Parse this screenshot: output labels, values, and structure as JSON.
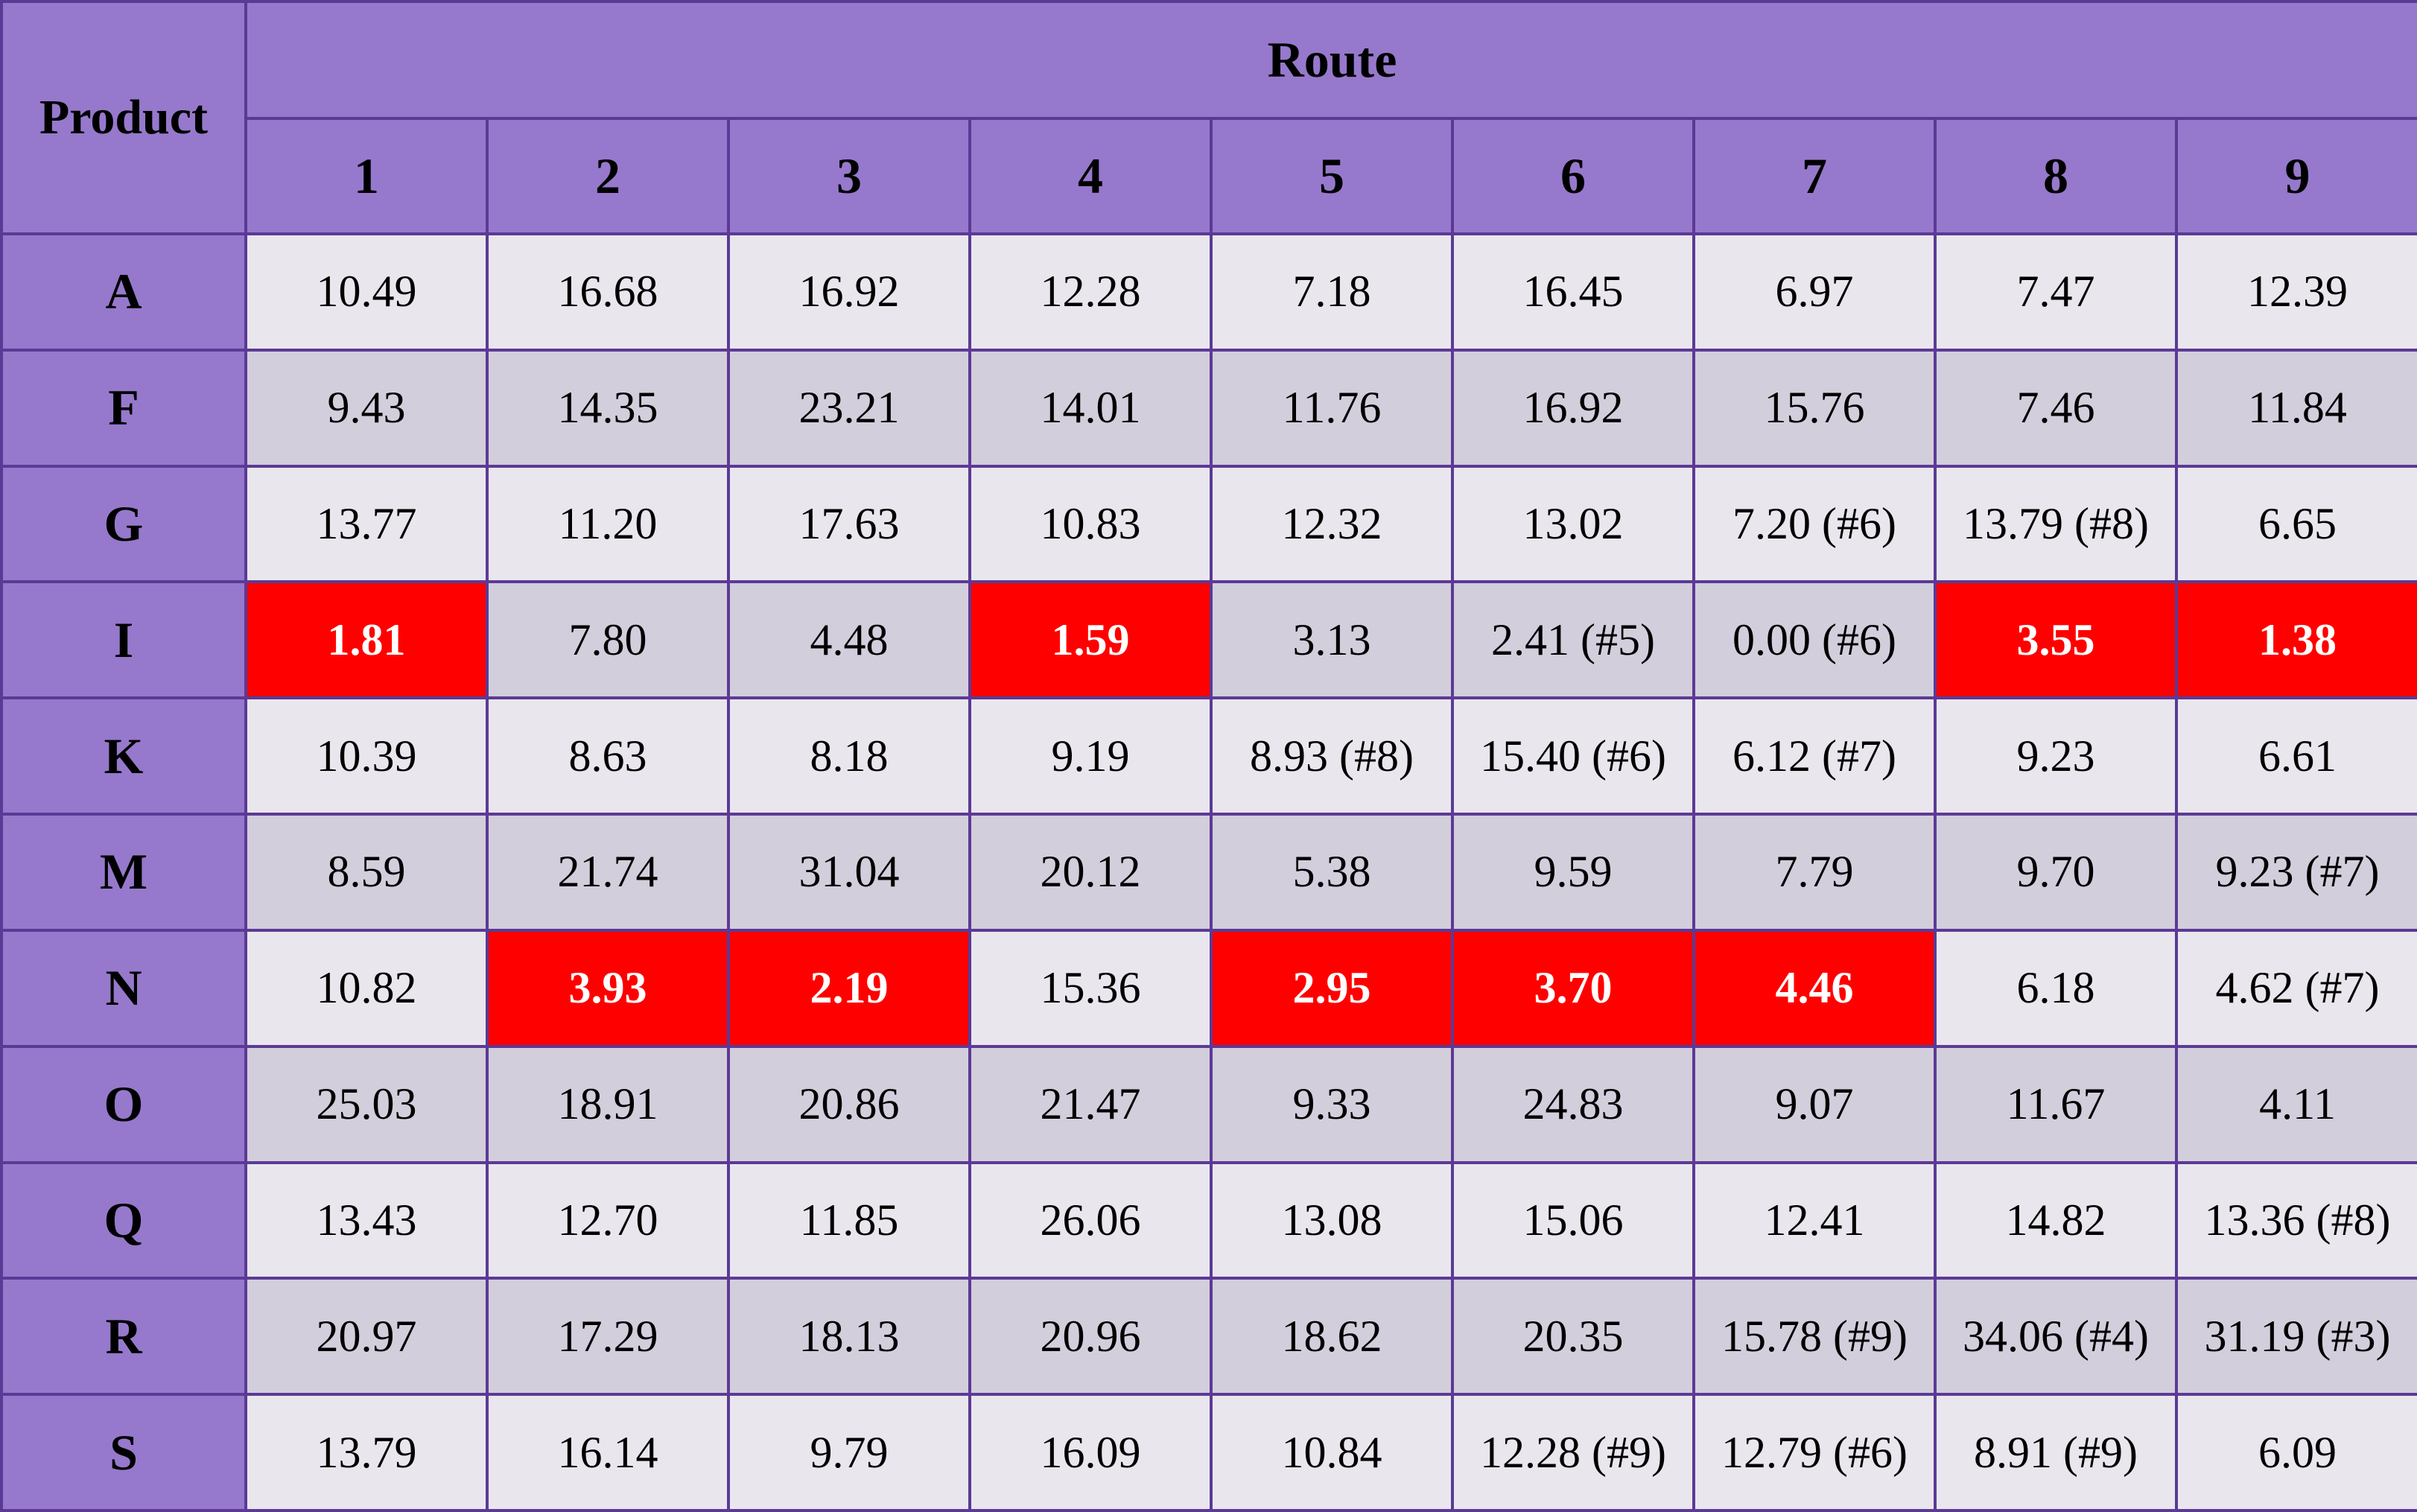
{
  "table": {
    "product_header": "Product",
    "route_header": "Route",
    "route_numbers": [
      "1",
      "2",
      "3",
      "4",
      "5",
      "6",
      "7",
      "8",
      "9"
    ],
    "highlight_color": "#ff0000",
    "header_color": "#9679cc",
    "rows": [
      {
        "label": "A",
        "cells": [
          {
            "value": "10.49"
          },
          {
            "value": "16.68"
          },
          {
            "value": "16.92"
          },
          {
            "value": "12.28"
          },
          {
            "value": "7.18"
          },
          {
            "value": "16.45"
          },
          {
            "value": "6.97"
          },
          {
            "value": "7.47"
          },
          {
            "value": "12.39"
          }
        ]
      },
      {
        "label": "F",
        "cells": [
          {
            "value": "9.43"
          },
          {
            "value": "14.35"
          },
          {
            "value": "23.21"
          },
          {
            "value": "14.01"
          },
          {
            "value": "11.76"
          },
          {
            "value": "16.92"
          },
          {
            "value": "15.76"
          },
          {
            "value": "7.46"
          },
          {
            "value": "11.84"
          }
        ]
      },
      {
        "label": "G",
        "cells": [
          {
            "value": "13.77"
          },
          {
            "value": "11.20"
          },
          {
            "value": "17.63"
          },
          {
            "value": "10.83"
          },
          {
            "value": "12.32"
          },
          {
            "value": "13.02"
          },
          {
            "value": "7.20 (#6)"
          },
          {
            "value": "13.79 (#8)"
          },
          {
            "value": "6.65"
          }
        ]
      },
      {
        "label": "I",
        "cells": [
          {
            "value": "1.81",
            "highlight": true
          },
          {
            "value": "7.80"
          },
          {
            "value": "4.48"
          },
          {
            "value": "1.59",
            "highlight": true
          },
          {
            "value": "3.13"
          },
          {
            "value": "2.41 (#5)"
          },
          {
            "value": "0.00 (#6)"
          },
          {
            "value": "3.55",
            "highlight": true
          },
          {
            "value": "1.38",
            "highlight": true
          }
        ]
      },
      {
        "label": "K",
        "cells": [
          {
            "value": "10.39"
          },
          {
            "value": "8.63"
          },
          {
            "value": "8.18"
          },
          {
            "value": "9.19"
          },
          {
            "value": "8.93 (#8)"
          },
          {
            "value": "15.40 (#6)"
          },
          {
            "value": "6.12 (#7)"
          },
          {
            "value": "9.23"
          },
          {
            "value": "6.61"
          }
        ]
      },
      {
        "label": "M",
        "cells": [
          {
            "value": "8.59"
          },
          {
            "value": "21.74"
          },
          {
            "value": "31.04"
          },
          {
            "value": "20.12"
          },
          {
            "value": "5.38"
          },
          {
            "value": "9.59"
          },
          {
            "value": "7.79"
          },
          {
            "value": "9.70"
          },
          {
            "value": "9.23 (#7)"
          }
        ]
      },
      {
        "label": "N",
        "cells": [
          {
            "value": "10.82"
          },
          {
            "value": "3.93",
            "highlight": true
          },
          {
            "value": "2.19",
            "highlight": true
          },
          {
            "value": "15.36"
          },
          {
            "value": "2.95",
            "highlight": true
          },
          {
            "value": "3.70",
            "highlight": true
          },
          {
            "value": "4.46",
            "highlight": true
          },
          {
            "value": "6.18"
          },
          {
            "value": "4.62 (#7)"
          }
        ]
      },
      {
        "label": "O",
        "cells": [
          {
            "value": "25.03"
          },
          {
            "value": "18.91"
          },
          {
            "value": "20.86"
          },
          {
            "value": "21.47"
          },
          {
            "value": "9.33"
          },
          {
            "value": "24.83"
          },
          {
            "value": "9.07"
          },
          {
            "value": "11.67"
          },
          {
            "value": "4.11"
          }
        ]
      },
      {
        "label": "Q",
        "cells": [
          {
            "value": "13.43"
          },
          {
            "value": "12.70"
          },
          {
            "value": "11.85"
          },
          {
            "value": "26.06"
          },
          {
            "value": "13.08"
          },
          {
            "value": "15.06"
          },
          {
            "value": "12.41"
          },
          {
            "value": "14.82"
          },
          {
            "value": "13.36 (#8)"
          }
        ]
      },
      {
        "label": "R",
        "cells": [
          {
            "value": "20.97"
          },
          {
            "value": "17.29"
          },
          {
            "value": "18.13"
          },
          {
            "value": "20.96"
          },
          {
            "value": "18.62"
          },
          {
            "value": "20.35"
          },
          {
            "value": "15.78 (#9)"
          },
          {
            "value": "34.06 (#4)"
          },
          {
            "value": "31.19 (#3)"
          }
        ]
      },
      {
        "label": "S",
        "cells": [
          {
            "value": "13.79"
          },
          {
            "value": "16.14"
          },
          {
            "value": "9.79"
          },
          {
            "value": "16.09"
          },
          {
            "value": "10.84"
          },
          {
            "value": "12.28 (#9)"
          },
          {
            "value": "12.79 (#6)"
          },
          {
            "value": "8.91 (#9)"
          },
          {
            "value": "6.09"
          }
        ]
      }
    ]
  }
}
